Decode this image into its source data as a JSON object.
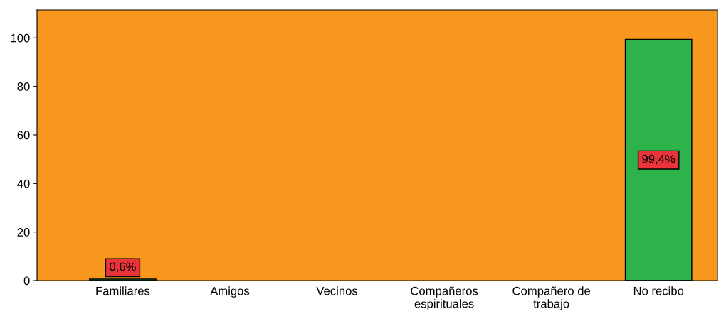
{
  "chart_data": {
    "type": "bar",
    "categories": [
      "Familiares",
      "Amigos",
      "Vecinos",
      "Compañeros\nespirituales",
      "Compañero de\ntrabajo",
      "No recibo"
    ],
    "values": [
      0.6,
      null,
      null,
      null,
      null,
      99.4
    ],
    "value_labels": [
      "0,6%",
      null,
      null,
      null,
      null,
      "99,4%"
    ],
    "colors": [
      "#2db34a",
      "#2db34a",
      "#2db34a",
      "#2db34a",
      "#2db34a",
      "#2db34a"
    ],
    "ylim": [
      0,
      111.5
    ],
    "yticks": [
      0,
      20,
      40,
      60,
      80,
      100
    ],
    "grid": false,
    "legend": false
  }
}
